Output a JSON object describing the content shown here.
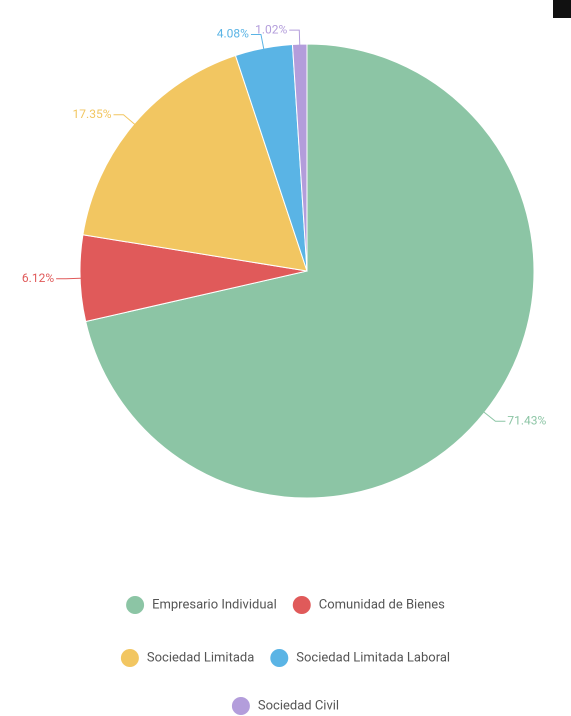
{
  "chart_data": {
    "type": "pie",
    "categories": [
      "Empresario Individual",
      "Comunidad de Bienes",
      "Sociedad Limitada",
      "Sociedad Limitada Laboral",
      "Sociedad Civil"
    ],
    "values": [
      71.43,
      6.12,
      17.35,
      4.08,
      1.02
    ],
    "value_labels": [
      "71.43%",
      "6.12%",
      "17.35%",
      "4.08%",
      "1.02%"
    ],
    "colors": [
      "#8cc5a5",
      "#e05a5a",
      "#f2c661",
      "#5ab4e5",
      "#b39ddb"
    ],
    "legend": "bottom"
  }
}
